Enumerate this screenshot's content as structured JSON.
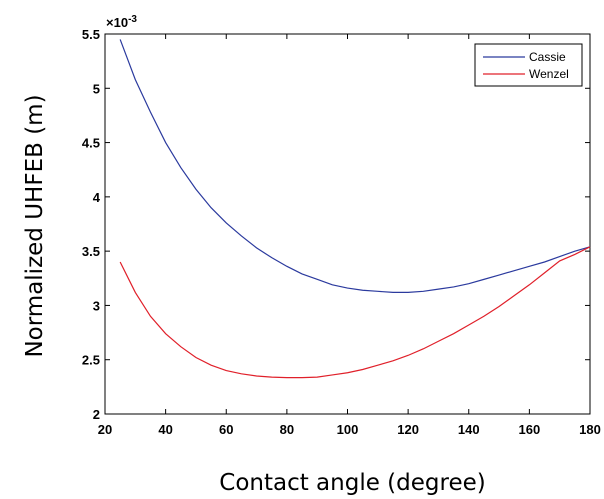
{
  "chart_data": {
    "type": "line",
    "xlabel": "Contact angle (degree)",
    "ylabel": "Normalized UHFEB (m)",
    "y_exponent_label": "×10",
    "y_exponent_power": "-3",
    "xlim": [
      20,
      180
    ],
    "ylim": [
      2,
      5.5
    ],
    "x_ticks": [
      20,
      40,
      60,
      80,
      100,
      120,
      140,
      160,
      180
    ],
    "y_ticks": [
      2,
      2.5,
      3,
      3.5,
      4,
      4.5,
      5,
      5.5
    ],
    "x_tick_labels": [
      "20",
      "40",
      "60",
      "80",
      "100",
      "120",
      "140",
      "160",
      "180"
    ],
    "y_tick_labels": [
      "2",
      "2.5",
      "3",
      "3.5",
      "4",
      "4.5",
      "5",
      "5.5"
    ],
    "legend_position": "top-right",
    "grid": false,
    "series": [
      {
        "name": "Cassie",
        "color": "#2b3a9e",
        "x": [
          25,
          30,
          35,
          40,
          45,
          50,
          55,
          60,
          65,
          70,
          75,
          80,
          85,
          90,
          95,
          100,
          105,
          110,
          115,
          120,
          125,
          130,
          135,
          140,
          145,
          150,
          155,
          160,
          165,
          170,
          175,
          180
        ],
        "y": [
          5.45,
          5.08,
          4.78,
          4.5,
          4.27,
          4.07,
          3.9,
          3.76,
          3.64,
          3.53,
          3.44,
          3.36,
          3.29,
          3.24,
          3.19,
          3.16,
          3.14,
          3.13,
          3.12,
          3.12,
          3.13,
          3.15,
          3.17,
          3.2,
          3.24,
          3.28,
          3.32,
          3.36,
          3.4,
          3.45,
          3.5,
          3.54
        ]
      },
      {
        "name": "Wenzel",
        "color": "#e0202a",
        "x": [
          25,
          30,
          35,
          40,
          45,
          50,
          55,
          60,
          65,
          70,
          75,
          80,
          85,
          90,
          95,
          100,
          105,
          110,
          115,
          120,
          125,
          130,
          135,
          140,
          145,
          150,
          155,
          160,
          165,
          170,
          175,
          180
        ],
        "y": [
          3.4,
          3.12,
          2.9,
          2.74,
          2.62,
          2.52,
          2.45,
          2.4,
          2.37,
          2.35,
          2.34,
          2.335,
          2.335,
          2.34,
          2.36,
          2.38,
          2.41,
          2.45,
          2.49,
          2.54,
          2.6,
          2.67,
          2.74,
          2.82,
          2.9,
          2.99,
          3.09,
          3.19,
          3.3,
          3.41,
          3.47,
          3.54
        ]
      }
    ]
  }
}
